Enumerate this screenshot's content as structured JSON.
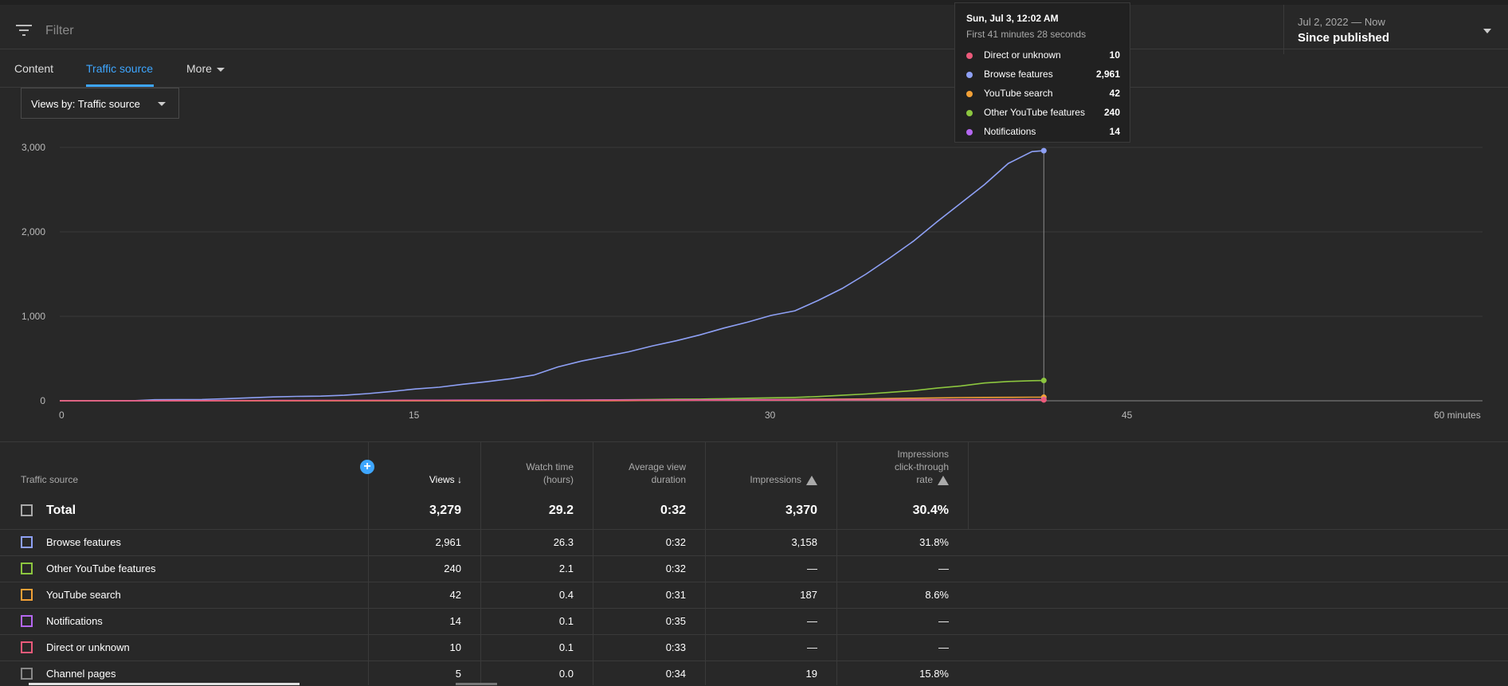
{
  "filter": {
    "placeholder": "Filter"
  },
  "date_range": {
    "range": "Jul 2, 2022 — Now",
    "label": "Since published"
  },
  "tabs": [
    {
      "label": "Content"
    },
    {
      "label": "Traffic source"
    },
    {
      "label": "More"
    }
  ],
  "views_dropdown": {
    "label": "Views by: Traffic source"
  },
  "tooltip": {
    "title": "Sun, Jul 3, 12:02 AM",
    "subtitle": "First 41 minutes 28 seconds",
    "rows": [
      {
        "name": "Direct or unknown",
        "value": "10",
        "color": "#ec5a7a"
      },
      {
        "name": "Browse features",
        "value": "2,961",
        "color": "#8ea0f5"
      },
      {
        "name": "YouTube search",
        "value": "42",
        "color": "#f2a036"
      },
      {
        "name": "Other YouTube features",
        "value": "240",
        "color": "#8cc63f"
      },
      {
        "name": "Notifications",
        "value": "14",
        "color": "#b467f0"
      }
    ]
  },
  "chart_data": {
    "type": "line",
    "xlabel": "",
    "ylabel": "",
    "x_ticks": [
      "0",
      "15",
      "30",
      "45",
      "60 minutes"
    ],
    "y_ticks": [
      "3,000",
      "2,000",
      "1,000",
      "0"
    ],
    "xlim": [
      0,
      60
    ],
    "ylim": [
      0,
      3000
    ],
    "grid": true,
    "x": [
      0,
      1,
      2,
      3,
      4,
      5,
      6,
      7,
      8,
      9,
      10,
      11,
      12,
      13,
      14,
      15,
      16,
      17,
      18,
      19,
      20,
      21,
      22,
      23,
      24,
      25,
      26,
      27,
      28,
      29,
      30,
      31,
      32,
      33,
      34,
      35,
      36,
      37,
      38,
      39,
      40,
      41,
      41.5
    ],
    "series": [
      {
        "name": "Browse features",
        "color": "#8ea0f5",
        "values": [
          0,
          0,
          0,
          0,
          12,
          14,
          15,
          25,
          35,
          45,
          52,
          55,
          65,
          85,
          110,
          140,
          160,
          195,
          225,
          260,
          305,
          400,
          470,
          525,
          580,
          650,
          710,
          780,
          860,
          930,
          1010,
          1065,
          1190,
          1330,
          1500,
          1690,
          1890,
          2120,
          2340,
          2560,
          2810,
          2950,
          2961
        ]
      },
      {
        "name": "Other YouTube features",
        "color": "#8cc63f",
        "values": [
          0,
          0,
          0,
          0,
          0,
          0,
          0,
          0,
          0,
          0,
          0,
          0,
          0,
          0,
          0,
          0,
          0,
          0,
          0,
          0,
          0,
          5,
          8,
          10,
          12,
          15,
          18,
          20,
          25,
          30,
          35,
          40,
          50,
          65,
          80,
          100,
          120,
          150,
          175,
          210,
          228,
          238,
          240
        ]
      },
      {
        "name": "YouTube search",
        "color": "#f2a036",
        "values": [
          0,
          0,
          0,
          0,
          0,
          0,
          0,
          0,
          0,
          0,
          0,
          0,
          0,
          0,
          0,
          0,
          0,
          0,
          0,
          0,
          0,
          0,
          0,
          0,
          2,
          4,
          6,
          8,
          10,
          12,
          14,
          16,
          18,
          20,
          22,
          26,
          30,
          34,
          38,
          40,
          41,
          42,
          42
        ]
      },
      {
        "name": "Notifications",
        "color": "#b467f0",
        "values": [
          0,
          0,
          0,
          1,
          1,
          2,
          2,
          3,
          3,
          4,
          4,
          5,
          5,
          6,
          6,
          7,
          7,
          8,
          8,
          8,
          9,
          9,
          9,
          10,
          10,
          10,
          11,
          11,
          11,
          12,
          12,
          12,
          12,
          13,
          13,
          13,
          13,
          13,
          14,
          14,
          14,
          14,
          14
        ]
      },
      {
        "name": "Direct or unknown",
        "color": "#ec5a7a",
        "values": [
          0,
          0,
          0,
          0,
          0,
          1,
          1,
          1,
          2,
          2,
          2,
          3,
          3,
          3,
          4,
          4,
          4,
          5,
          5,
          5,
          5,
          6,
          6,
          6,
          6,
          7,
          7,
          7,
          7,
          8,
          8,
          8,
          8,
          9,
          9,
          9,
          9,
          9,
          10,
          10,
          10,
          10,
          10
        ]
      }
    ]
  },
  "table": {
    "headers": {
      "source": "Traffic source",
      "views": "Views",
      "watch_time_1": "Watch time",
      "watch_time_2": "(hours)",
      "avd_1": "Average view",
      "avd_2": "duration",
      "impressions": "Impressions",
      "ctr_1": "Impressions",
      "ctr_2": "click-through",
      "ctr_3": "rate"
    },
    "total": {
      "label": "Total",
      "views": "3,279",
      "watch": "29.2",
      "avd": "0:32",
      "impr": "3,370",
      "ctr": "30.4%"
    },
    "rows": [
      {
        "label": "Browse features",
        "views": "2,961",
        "watch": "26.3",
        "avd": "0:32",
        "impr": "3,158",
        "ctr": "31.8%",
        "color": "#8ea0f5"
      },
      {
        "label": "Other YouTube features",
        "views": "240",
        "watch": "2.1",
        "avd": "0:32",
        "impr": "—",
        "ctr": "—",
        "color": "#8cc63f"
      },
      {
        "label": "YouTube search",
        "views": "42",
        "watch": "0.4",
        "avd": "0:31",
        "impr": "187",
        "ctr": "8.6%",
        "color": "#f2a036"
      },
      {
        "label": "Notifications",
        "views": "14",
        "watch": "0.1",
        "avd": "0:35",
        "impr": "—",
        "ctr": "—",
        "color": "#b467f0"
      },
      {
        "label": "Direct or unknown",
        "views": "10",
        "watch": "0.1",
        "avd": "0:33",
        "impr": "—",
        "ctr": "—",
        "color": "#ec5a7a"
      },
      {
        "label": "Channel pages",
        "views": "5",
        "watch": "0.0",
        "avd": "0:34",
        "impr": "19",
        "ctr": "15.8%",
        "color": "#888888"
      }
    ]
  }
}
